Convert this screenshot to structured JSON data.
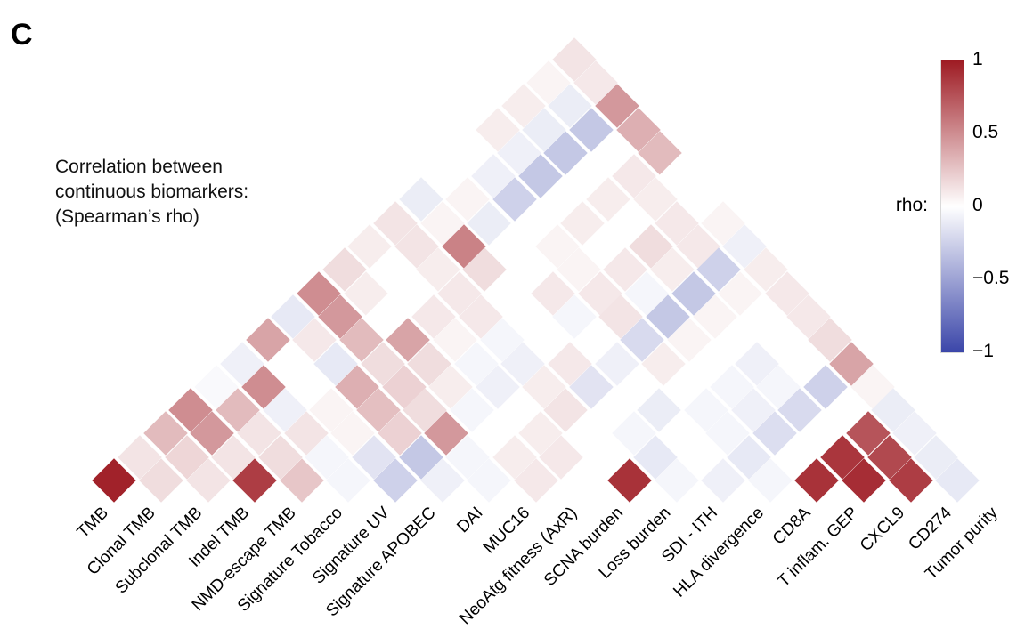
{
  "panel_label": "C",
  "title": {
    "line1": "Correlation between",
    "line2": "continuous biomarkers:",
    "line3": "(Spearman’s rho)"
  },
  "legend": {
    "label": "rho:",
    "ticks": [
      "1",
      "0.5",
      "0",
      "−0.5",
      "−1"
    ],
    "color_positive": "#9e1b23",
    "color_zero": "#ffffff",
    "color_negative": "#3b46a9"
  },
  "chart_data": {
    "type": "heatmap",
    "subtype": "rotated-upper-triangle-correlation-matrix",
    "title": "Correlation between continuous biomarkers: (Spearman's rho)",
    "legend_label": "rho:",
    "colorbar": {
      "min": -1,
      "max": 1,
      "tick_values": [
        1,
        0.5,
        0,
        -0.5,
        -1
      ]
    },
    "grid": "off",
    "variables": [
      "TMB",
      "Clonal TMB",
      "Subclonal TMB",
      "Indel TMB",
      "NMD-escape TMB",
      "Signature Tobacco",
      "Signature UV",
      "Signature APOBEC",
      "DAI",
      "MUC16",
      "NeoAtg fitness (AxR)",
      "SCNA burden",
      "Loss burden",
      "SDI - ITH",
      "HLA divergence",
      "CD8A",
      "T inflam. GEP",
      "CXCL9",
      "CD274",
      "Tumor purity"
    ],
    "rho_upper_triangle": [
      [
        0.97,
        0.12,
        0.3,
        0.5,
        -0.03,
        -0.08,
        0.4,
        -0.12,
        0.5,
        0.15,
        0.08,
        0.12,
        -0.1,
        0.0,
        0.0,
        0.08,
        0.08,
        0.05,
        0.12
      ],
      [
        0.15,
        0.18,
        0.45,
        0.3,
        0.5,
        0.0,
        0.1,
        0.45,
        0.08,
        0.0,
        0.12,
        0.05,
        0.05,
        -0.08,
        -0.08,
        -0.1,
        -0.1,
        0.1
      ],
      [
        0.12,
        0.12,
        0.12,
        -0.08,
        0.0,
        -0.12,
        0.3,
        0.0,
        0.0,
        0.08,
        0.55,
        -0.1,
        -0.25,
        -0.3,
        -0.3,
        -0.3,
        0.45
      ],
      [
        0.85,
        0.15,
        0.12,
        0.05,
        0.35,
        0.15,
        0.4,
        0.1,
        0.1,
        0.15,
        0.0,
        0.0,
        0.0,
        0.0,
        0.0,
        0.35
      ],
      [
        0.25,
        -0.05,
        0.05,
        0.28,
        0.2,
        0.15,
        0.05,
        0.1,
        0.0,
        0.0,
        0.05,
        0.08,
        0.08,
        0.1,
        0.3
      ],
      [
        -0.05,
        -0.15,
        0.2,
        0.15,
        0.08,
        -0.05,
        -0.05,
        0.0,
        0.1,
        0.05,
        0.0,
        0.0,
        0.08,
        0.0
      ],
      [
        -0.25,
        -0.3,
        0.45,
        -0.05,
        -0.08,
        -0.08,
        0.0,
        -0.05,
        0.1,
        0.1,
        0.15,
        0.1,
        0.0
      ],
      [
        -0.08,
        -0.05,
        0.0,
        0.0,
        0.08,
        0.1,
        0.0,
        0.12,
        -0.05,
        0.08,
        0.1,
        0.05
      ],
      [
        -0.05,
        0.08,
        0.08,
        0.12,
        -0.15,
        -0.08,
        -0.2,
        -0.3,
        -0.3,
        -0.25,
        -0.08
      ],
      [
        0.1,
        0.1,
        0.0,
        0.0,
        0.0,
        0.08,
        0.05,
        0.05,
        0.05,
        0.08
      ],
      [
        0.0,
        0.0,
        -0.05,
        -0.1,
        0.0,
        0.0,
        0.0,
        0.0,
        0.1
      ],
      [
        0.9,
        -0.12,
        0.0,
        -0.05,
        -0.05,
        -0.08,
        0.0,
        0.1
      ],
      [
        -0.05,
        0.0,
        -0.05,
        -0.08,
        -0.05,
        0.0,
        0.15
      ],
      [
        -0.08,
        -0.12,
        -0.18,
        -0.2,
        -0.25,
        0.4
      ],
      [
        -0.05,
        0.0,
        0.0,
        0.0,
        0.05
      ],
      [
        0.9,
        0.88,
        0.75,
        -0.1
      ],
      [
        0.92,
        0.8,
        -0.08
      ],
      [
        0.85,
        -0.1
      ],
      [
        -0.12
      ]
    ]
  }
}
